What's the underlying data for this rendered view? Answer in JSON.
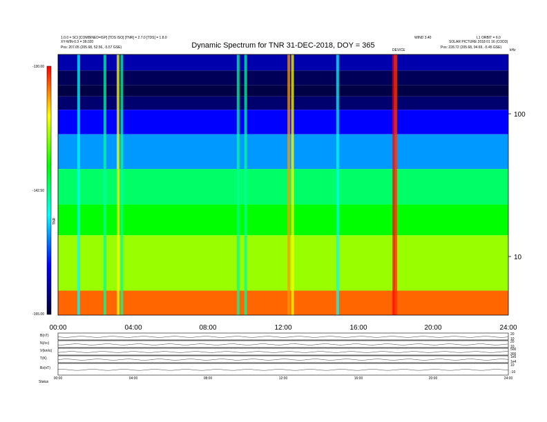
{
  "header": {
    "title": "Dynamic Spectrum for TNR 31-DEC-2018, DOY = 365",
    "left_line1": "1.0.0 = SCI [COMBINED=ISP] [TDS ISO] [TNR] = 2.7.0 [TDS] = 1.8.0",
    "left_line2": "XY-WIN-0.3 = 38.020",
    "left_line3": "Pos:   207.05 (205.68, 52.56, -5.57 GSE)",
    "right_line1": "WIND 3.40",
    "right_line2": "L1 ORBIT = 6.0",
    "right_line3": "SOLAR PICTURE 2018 01 16 (COD3)",
    "right_line4": "Pos:   228.72 (205.68, 94.69, -5.45 GSE)",
    "small_note": "DEVICE"
  },
  "colorbar": {
    "tick_labels": [
      "-130.00",
      "-142.50",
      "-155.00"
    ],
    "tick_values": [
      -130,
      -142.5,
      -155
    ],
    "unit": "TNR"
  },
  "chart_data": [
    {
      "type": "heatmap",
      "title": "Dynamic Spectrum for TNR 31-DEC-2018, DOY = 365",
      "x_ticks": [
        "00:00",
        "04:00",
        "08:00",
        "12:00",
        "16:00",
        "20:00",
        "24:00"
      ],
      "x_hours": [
        0,
        4,
        8,
        12,
        16,
        20,
        24
      ],
      "xlim": [
        0,
        24
      ],
      "y_scale": "log",
      "ylim": [
        4,
        300
      ],
      "y_ticks": [
        "100",
        "10"
      ],
      "y_tick_values": [
        100,
        10
      ],
      "z_range": [
        -155,
        -130
      ],
      "colormap": [
        "#000030",
        "#0000ff",
        "#00ffff",
        "#00ff00",
        "#ffff00",
        "#ff0000"
      ],
      "bands": [
        {
          "f_low": 230,
          "f_high": 300,
          "level": -133
        },
        {
          "f_low": 180,
          "f_high": 230,
          "level": -131
        },
        {
          "f_low": 150,
          "f_high": 180,
          "level": -130.5
        },
        {
          "f_low": 120,
          "f_high": 150,
          "level": -131.5
        },
        {
          "f_low": 80,
          "f_high": 120,
          "level": -135
        },
        {
          "f_low": 45,
          "f_high": 80,
          "level": -138
        },
        {
          "f_low": 25,
          "f_high": 45,
          "level": -143
        },
        {
          "f_low": 15,
          "f_high": 25,
          "level": -145
        },
        {
          "f_low": 6,
          "f_high": 15,
          "level": -148
        },
        {
          "f_low": 4,
          "f_high": 6,
          "level": -153
        }
      ],
      "bursts": [
        {
          "t": 1.1,
          "level": -140
        },
        {
          "t": 2.5,
          "level": -142
        },
        {
          "t": 3.2,
          "level": -150
        },
        {
          "t": 3.4,
          "level": -142
        },
        {
          "t": 9.6,
          "level": -142
        },
        {
          "t": 10.0,
          "level": -142
        },
        {
          "t": 12.3,
          "level": -152
        },
        {
          "t": 12.5,
          "level": -150
        },
        {
          "t": 14.9,
          "level": -140
        },
        {
          "t": 17.9,
          "level": -155
        },
        {
          "t": 18.0,
          "level": -154
        }
      ]
    },
    {
      "type": "line",
      "x_ticks": [
        "00:00",
        "04:00",
        "08:00",
        "12:00",
        "16:00",
        "20:00",
        "24:00"
      ],
      "panels": [
        {
          "left_label": "B(nT)",
          "right_labels": [
            "20",
            "10"
          ]
        },
        {
          "left_label": "N(/cc)",
          "right_labels": [
            "20",
            "10"
          ]
        },
        {
          "left_label": "V(km/s)",
          "right_labels": [
            "500",
            "300"
          ]
        },
        {
          "left_label": "T(K)",
          "right_labels": [
            "1e5",
            "1e4"
          ]
        },
        {
          "left_label": "Bz(nT)",
          "right_labels": [
            "10",
            "-10"
          ]
        }
      ],
      "footer_label": "Status"
    }
  ]
}
